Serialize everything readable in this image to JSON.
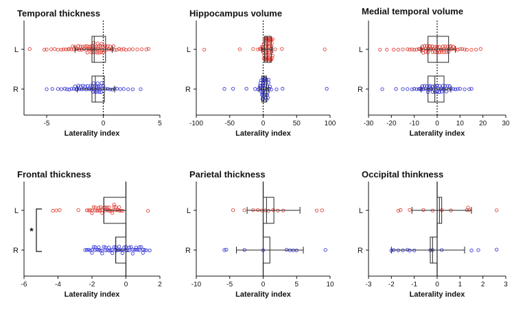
{
  "chart_data": [
    {
      "type": "scatter",
      "title": "Temporal thickness",
      "xlabel": "Laterality index",
      "categories": [
        "L",
        "R"
      ],
      "xlim": [
        -7,
        5
      ],
      "xticks": [
        -5,
        0,
        5
      ],
      "dotted_zero_line": true,
      "series": [
        {
          "color": "#e0433a",
          "values": [
            -6.5,
            -5.2,
            -5.0,
            -4.6,
            -4.3,
            -4.0,
            -3.7,
            -3.5,
            -3.3,
            -3.1,
            -3.0,
            -2.8,
            -2.7,
            -2.6,
            -2.5,
            -2.4,
            -2.3,
            -2.2,
            -2.1,
            -2.0,
            -1.9,
            -1.8,
            -1.7,
            -1.6,
            -1.5,
            -1.45,
            -1.4,
            -1.3,
            -1.25,
            -1.2,
            -1.1,
            -1.05,
            -1.0,
            -0.95,
            -0.9,
            -0.85,
            -0.8,
            -0.75,
            -0.7,
            -0.65,
            -0.6,
            -0.55,
            -0.5,
            -0.45,
            -0.4,
            -0.35,
            -0.3,
            -0.25,
            -0.2,
            -0.15,
            -0.1,
            -0.05,
            0.0,
            0.1,
            0.2,
            0.3,
            0.4,
            0.5,
            0.6,
            0.7,
            0.8,
            0.9,
            1.0,
            1.2,
            1.4,
            1.6,
            1.8,
            2.0,
            2.3,
            2.6,
            3.0,
            3.4,
            3.8,
            4.0
          ],
          "median": -0.8,
          "q1": -1.0,
          "q3": 0.2,
          "whisker_low": -2.5,
          "whisker_high": 0.8
        },
        {
          "color": "#3a3ad8",
          "values": [
            -5.0,
            -4.5,
            -4.0,
            -3.7,
            -3.4,
            -3.2,
            -3.0,
            -2.8,
            -2.6,
            -2.5,
            -2.4,
            -2.3,
            -2.2,
            -2.1,
            -2.0,
            -1.9,
            -1.8,
            -1.7,
            -1.6,
            -1.5,
            -1.4,
            -1.3,
            -1.2,
            -1.1,
            -1.0,
            -0.95,
            -0.9,
            -0.85,
            -0.8,
            -0.75,
            -0.7,
            -0.65,
            -0.6,
            -0.55,
            -0.5,
            -0.45,
            -0.4,
            -0.35,
            -0.3,
            -0.25,
            -0.2,
            -0.15,
            -0.1,
            0.0,
            0.2,
            0.4,
            0.6,
            0.8,
            1.0,
            1.2,
            1.5,
            1.8,
            2.2,
            2.6,
            3.3
          ],
          "median": -0.7,
          "q1": -1.0,
          "q3": 0.1,
          "whisker_low": -2.3,
          "whisker_high": 1.0
        }
      ]
    },
    {
      "type": "scatter",
      "title": "Hippocampus volume",
      "xlabel": "Laterality index",
      "categories": [
        "L",
        "R"
      ],
      "xlim": [
        -100,
        100
      ],
      "xticks": [
        -100,
        -50,
        0,
        50,
        100
      ],
      "dotted_zero_line": true,
      "series": [
        {
          "color": "#e0433a",
          "values": [
            -88,
            -35,
            -15,
            -8,
            -5,
            -3,
            -2,
            -1,
            0,
            0.5,
            1,
            1.5,
            2,
            2.5,
            3,
            3.5,
            4,
            4.5,
            5,
            5.5,
            6,
            6.5,
            7,
            7.5,
            8,
            8.5,
            9,
            9.5,
            10,
            10.5,
            11,
            11.5,
            12,
            12.5,
            13,
            14,
            1,
            2,
            3,
            4,
            5,
            6,
            7,
            8,
            9,
            10,
            11,
            12,
            13,
            14,
            2,
            4,
            6,
            8,
            10,
            12,
            3,
            5,
            7,
            9,
            11,
            18,
            28,
            92
          ],
          "median": 6,
          "q1": 2,
          "q3": 12,
          "whisker_low": -2,
          "whisker_high": 14
        },
        {
          "color": "#3a3ad8",
          "values": [
            -58,
            -45,
            -25,
            -12,
            -8,
            -6,
            -5,
            -4,
            -3,
            -2,
            -1,
            0,
            0.5,
            1,
            1.5,
            2,
            2.5,
            3,
            3.5,
            4,
            4.5,
            5,
            5.5,
            6,
            7,
            8,
            9,
            10,
            -4,
            -2,
            0,
            2,
            4,
            6,
            8,
            -3,
            -1,
            1,
            3,
            5,
            7,
            12,
            20,
            29,
            95
          ],
          "median": 1,
          "q1": -2,
          "q3": 5,
          "whisker_low": -6,
          "whisker_high": 8
        }
      ]
    },
    {
      "type": "scatter",
      "title": "Medial temporal volume",
      "xlabel": "Laterality index",
      "categories": [
        "L",
        "R"
      ],
      "xlim": [
        -30,
        30
      ],
      "xticks": [
        -30,
        -20,
        -10,
        0,
        10,
        20,
        30
      ],
      "dotted_zero_line": true,
      "series": [
        {
          "color": "#e0433a",
          "values": [
            -25,
            -22,
            -19,
            -17,
            -15,
            -13,
            -12,
            -11,
            -10,
            -9,
            -8,
            -7.5,
            -7,
            -6.5,
            -6,
            -5.5,
            -5,
            -4.5,
            -4,
            -3.5,
            -3,
            -2.5,
            -2,
            -1.5,
            -1,
            -0.5,
            0,
            0.5,
            1,
            1.5,
            2,
            2.5,
            3,
            3.5,
            4,
            4.5,
            5,
            5.5,
            6,
            6.5,
            7,
            8,
            9,
            10,
            11,
            12,
            13,
            15,
            17,
            19,
            -6,
            -4,
            -2,
            0,
            2,
            4,
            6,
            -5,
            -3,
            -1,
            1,
            3,
            5
          ],
          "median": 0,
          "q1": -4,
          "q3": 5,
          "whisker_low": -7,
          "whisker_high": 8
        },
        {
          "color": "#3a3ad8",
          "values": [
            -24,
            -18,
            -15,
            -13,
            -11,
            -10,
            -9,
            -8,
            -7.5,
            -7,
            -6.5,
            -6,
            -5.5,
            -5,
            -4.5,
            -4,
            -3.5,
            -3,
            -2.5,
            -2,
            -1.5,
            -1,
            -0.5,
            0,
            0.5,
            1,
            1.5,
            2,
            2.5,
            3,
            3.5,
            4,
            4.5,
            5,
            5.5,
            6,
            7,
            8,
            9,
            10,
            12,
            14,
            15,
            -4,
            -2,
            0,
            2,
            4,
            -3,
            -1,
            1
          ],
          "median": -1,
          "q1": -4,
          "q3": 3,
          "whisker_low": -7,
          "whisker_high": 6
        }
      ]
    },
    {
      "type": "scatter",
      "title": "Frontal thickness",
      "xlabel": "Laterality index",
      "categories": [
        "L",
        "R"
      ],
      "xlim": [
        -6,
        2
      ],
      "xticks": [
        -6,
        -4,
        -2,
        0,
        2
      ],
      "solid_zero_line": true,
      "significance": {
        "label": "*",
        "between": [
          "L",
          "R"
        ]
      },
      "series": [
        {
          "color": "#e0433a",
          "values": [
            -4.3,
            -4.1,
            -3.9,
            -2.8,
            -2.3,
            -2.2,
            -2.1,
            -2.0,
            -1.9,
            -1.8,
            -1.7,
            -1.6,
            -1.5,
            -1.4,
            -1.3,
            -1.2,
            -1.1,
            -1.0,
            -0.9,
            -0.8,
            -0.7,
            -0.6,
            -0.5,
            -0.4,
            -0.3,
            -0.2,
            -2.0,
            -1.8,
            -1.6,
            -1.4,
            -1.2,
            -1.0,
            -0.8,
            -0.6,
            -0.4,
            -1.5,
            -1.1,
            -0.7,
            1.3
          ],
          "median": -1.3,
          "q1": -1.3,
          "q3": 0.0,
          "whisker_low": -1.3,
          "whisker_high": 0.0
        },
        {
          "color": "#3a3ad8",
          "values": [
            -2.4,
            -2.2,
            -2.0,
            -1.8,
            -1.6,
            -1.4,
            -1.2,
            -1.0,
            -0.8,
            -0.6,
            -0.4,
            -0.2,
            0.0,
            0.2,
            0.4,
            0.6,
            0.8,
            1.0,
            1.2,
            1.4,
            -2.3,
            -2.1,
            -1.9,
            -1.7,
            -1.5,
            -1.3,
            -1.1,
            -0.9,
            -0.7,
            -0.5,
            -0.3,
            -0.1,
            0.1,
            0.3,
            0.5,
            0.7,
            0.9,
            1.1,
            -2.0,
            -1.6,
            -1.2,
            -0.8,
            -0.4,
            0.0,
            0.4,
            0.8,
            -1.8,
            -1.4,
            -1.0,
            -0.6,
            -0.2,
            0.2,
            0.6,
            1.0
          ],
          "median": -0.6,
          "q1": -0.6,
          "q3": 0.0,
          "whisker_low": -0.6,
          "whisker_high": 0.0
        }
      ]
    },
    {
      "type": "scatter",
      "title": "Parietal thickness",
      "xlabel": "Laterality index",
      "categories": [
        "L",
        "R"
      ],
      "xlim": [
        -10,
        10
      ],
      "xticks": [
        -10,
        -5,
        0,
        5,
        10
      ],
      "solid_zero_line": true,
      "series": [
        {
          "color": "#e0433a",
          "values": [
            -4.5,
            -2.8,
            -1.5,
            -0.8,
            -0.2,
            0.3,
            0.8,
            1.5,
            2.2,
            3.0,
            8.0,
            8.8
          ],
          "median": 0.5,
          "q1": 0.0,
          "q3": 1.6,
          "whisker_low": -2.4,
          "whisker_high": 5.5
        },
        {
          "color": "#3a3ad8",
          "values": [
            -5.8,
            -5.5,
            -2.8,
            0.0,
            3.5,
            4.0,
            4.5,
            5.0,
            9.3
          ],
          "median": 0.0,
          "q1": 0.0,
          "q3": 1.0,
          "whisker_low": -4.0,
          "whisker_high": 6.0
        }
      ]
    },
    {
      "type": "scatter",
      "title": "Occipital thinkness",
      "xlabel": "Laterality index",
      "categories": [
        "L",
        "R"
      ],
      "xlim": [
        -3,
        3
      ],
      "xticks": [
        -3,
        -2,
        -1,
        0,
        1,
        2,
        3
      ],
      "solid_zero_line": true,
      "series": [
        {
          "color": "#e0433a",
          "values": [
            -1.7,
            -1.6,
            -1.2,
            -0.6,
            -0.2,
            0.2,
            0.6,
            1.3,
            1.35,
            1.4,
            2.6
          ],
          "median": 0.1,
          "q1": 0.0,
          "q3": 0.2,
          "whisker_low": -1.1,
          "whisker_high": 1.5
        },
        {
          "color": "#3a3ad8",
          "values": [
            -2.0,
            -1.9,
            -1.7,
            -1.5,
            -1.3,
            -1.2,
            -1.0,
            -0.3,
            -0.2,
            0.2,
            1.5,
            1.8,
            2.6
          ],
          "median": -0.2,
          "q1": -0.3,
          "q3": 0.0,
          "whisker_low": -2.0,
          "whisker_high": 1.2
        }
      ]
    }
  ]
}
